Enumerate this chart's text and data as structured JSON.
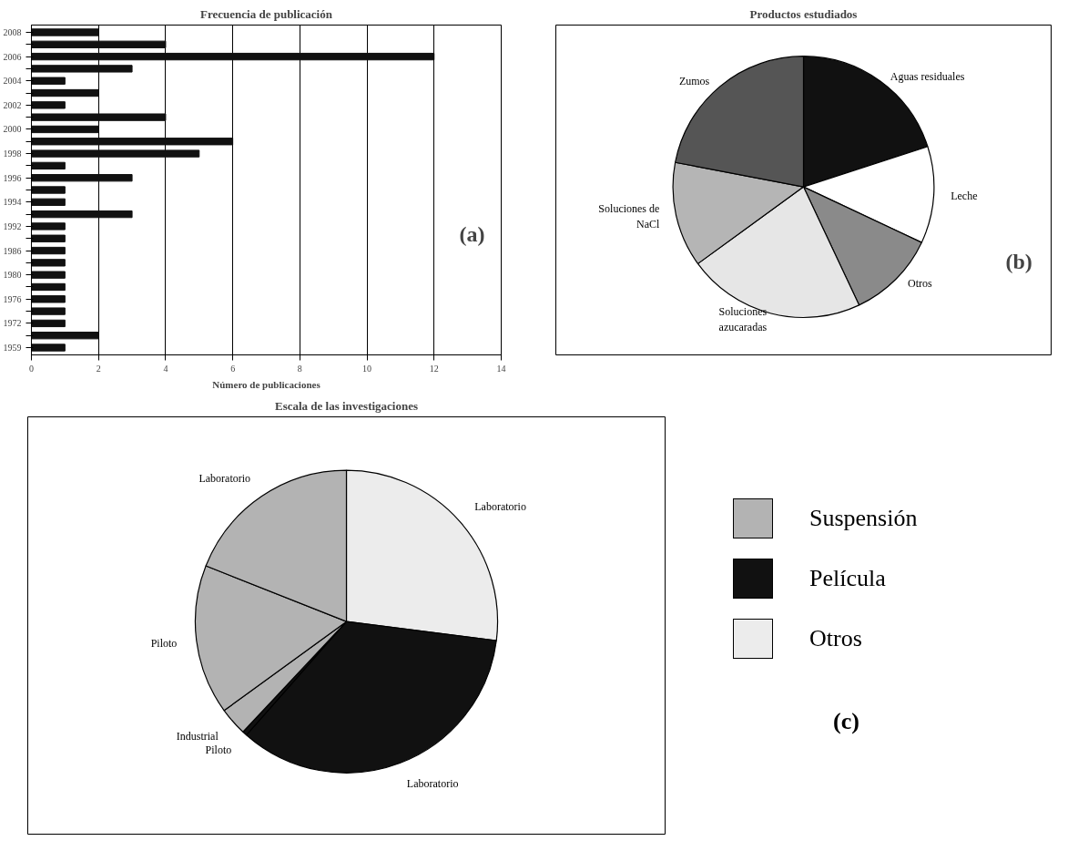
{
  "chart_data": [
    {
      "type": "bar",
      "orientation": "horizontal",
      "title": "Frecuencia de publicación",
      "xlabel": "Número de publicaciones",
      "categories": [
        "2008",
        null,
        "2006",
        null,
        "2004",
        null,
        "2002",
        null,
        "2000",
        null,
        "1998",
        null,
        "1996",
        null,
        "1994",
        null,
        "1992",
        null,
        "1986",
        null,
        "1980",
        null,
        "1976",
        null,
        "1972",
        null,
        "1959"
      ],
      "values": [
        2,
        4,
        12,
        3,
        1,
        2,
        1,
        4,
        2,
        6,
        5,
        1,
        3,
        1,
        1,
        3,
        1,
        1,
        1,
        1,
        1,
        1,
        1,
        1,
        1,
        2,
        1
      ],
      "color": "#111111",
      "xlim": [
        0,
        14
      ],
      "xticks": [
        0,
        2,
        4,
        6,
        8,
        10,
        12,
        14
      ],
      "grid": "x",
      "annotations": [
        "(a)"
      ]
    },
    {
      "type": "pie",
      "title": "Productos estudiados",
      "categories": [
        "Aguas residuales",
        "Leche",
        "Otros",
        "Soluciones azucaradas",
        "Soluciones de NaCl",
        "Zumos"
      ],
      "values": [
        20,
        12,
        11,
        22,
        13,
        22
      ],
      "colors": [
        "#111111",
        "#ffffff",
        "#8a8a8a",
        "#e6e6e6",
        "#b5b5b5",
        "#555555"
      ],
      "annotations": [
        "(b)"
      ]
    },
    {
      "type": "pie",
      "title": "Escala de las investigaciones",
      "categories": [
        "Laboratorio",
        "Laboratorio",
        "Piloto",
        "Industrial",
        "Piloto",
        "Laboratorio"
      ],
      "values": [
        27,
        34.5,
        0.5,
        3,
        16,
        19
      ],
      "colors": [
        "#ececec",
        "#111111",
        "#111111",
        "#b3b3b3",
        "#b3b3b3",
        "#b3b3b3"
      ],
      "annotations": [
        "Suspensión",
        "Película",
        "Otros",
        "(c)"
      ]
    }
  ]
}
